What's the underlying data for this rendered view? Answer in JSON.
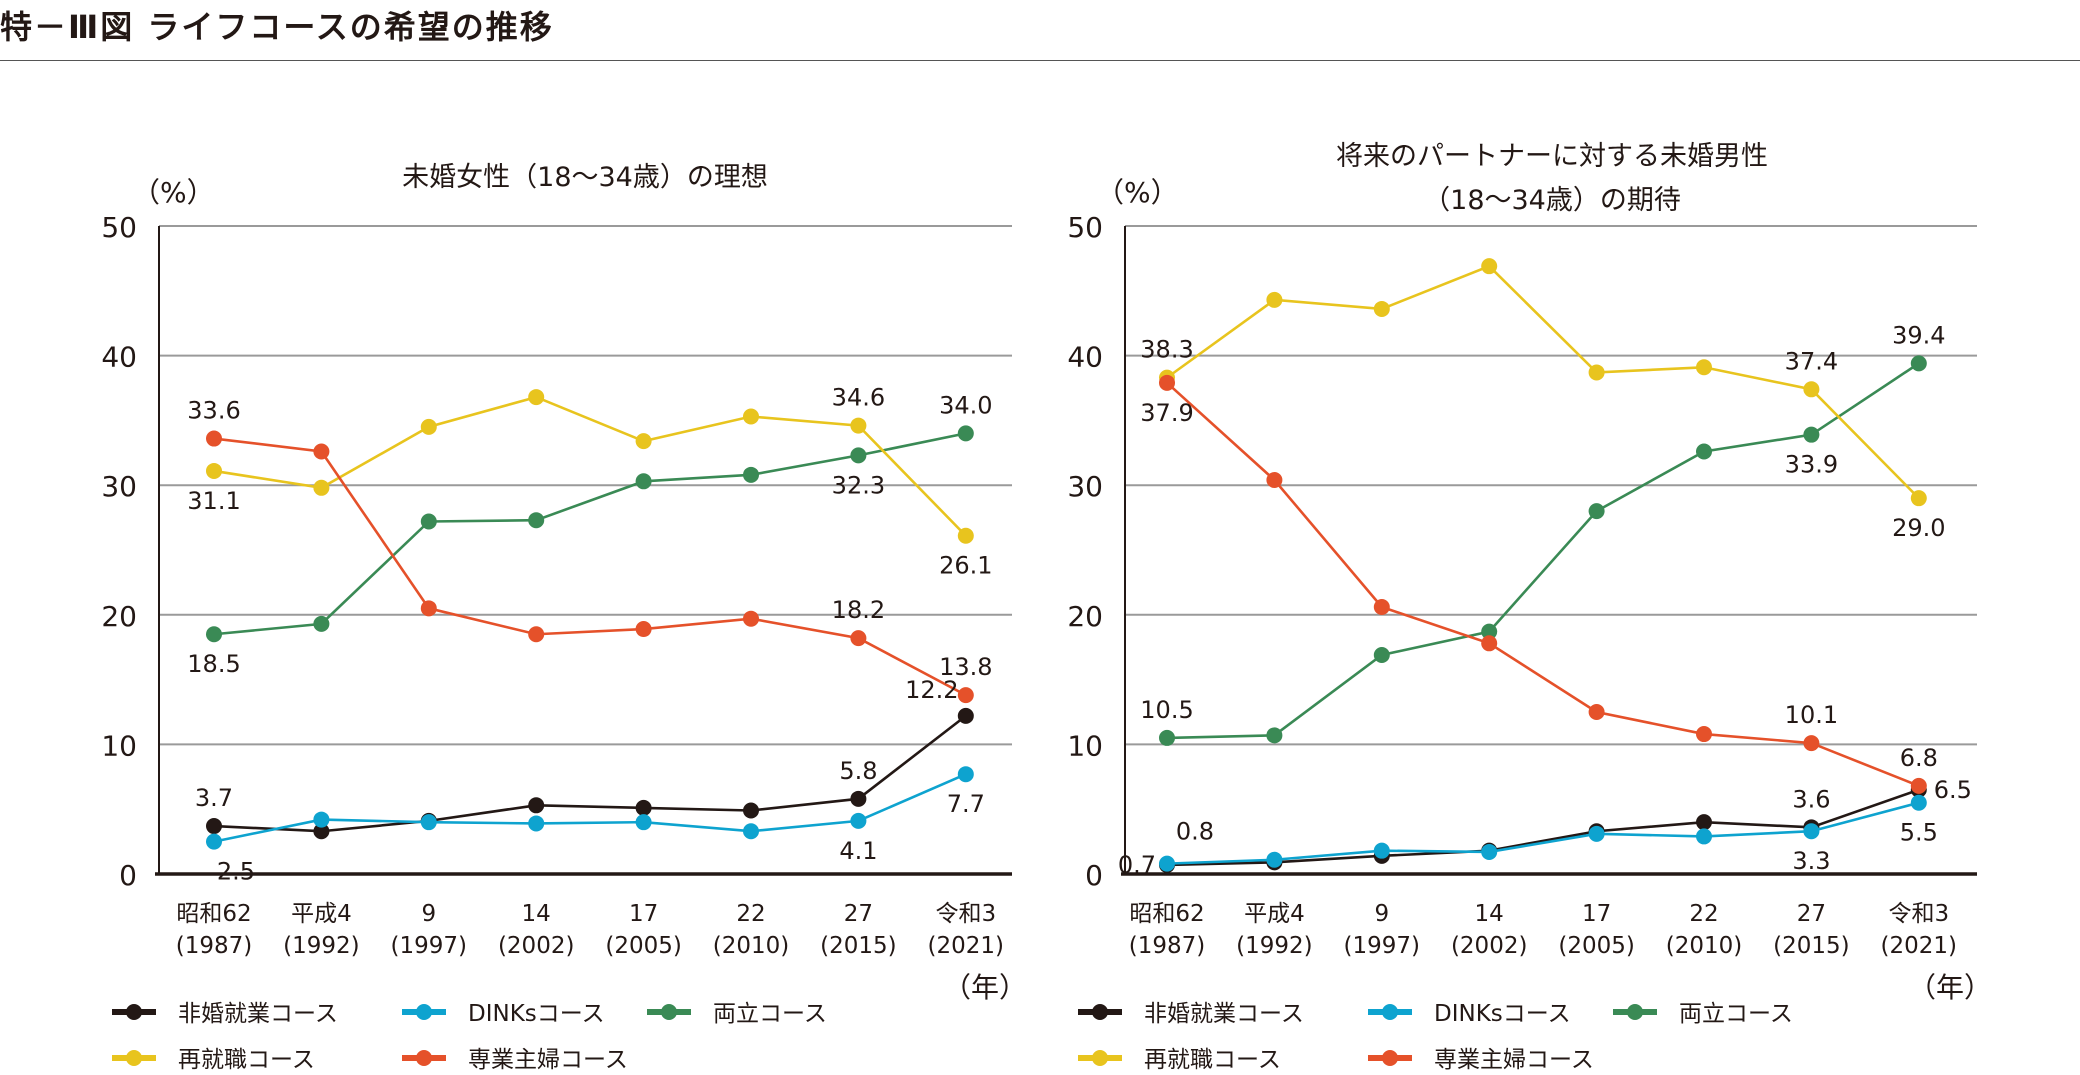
{
  "title": "特－Ⅲ図 ライフコースの希望の推移",
  "chart_data": [
    {
      "type": "line",
      "title": "未婚女性（18〜34歳）の理想",
      "title_lines": [
        "未婚女性（18〜34歳）の理想"
      ],
      "ylabel": "（%）",
      "xlabel": "（年）",
      "ylim": [
        0,
        50
      ],
      "yticks": [
        0,
        10,
        20,
        30,
        40,
        50
      ],
      "grid": true,
      "legend_position": "bottom",
      "categories": [
        [
          "昭和62",
          "(1987)"
        ],
        [
          "平成4",
          "(1992)"
        ],
        [
          "9",
          "(1997)"
        ],
        [
          "14",
          "(2002)"
        ],
        [
          "17",
          "(2005)"
        ],
        [
          "22",
          "(2010)"
        ],
        [
          "27",
          "(2015)"
        ],
        [
          "令和3",
          "(2021)"
        ]
      ],
      "series": [
        {
          "name": "非婚就業コース",
          "color": "#231815",
          "values": [
            3.7,
            3.3,
            4.1,
            5.3,
            5.1,
            4.9,
            5.8,
            12.2
          ],
          "labels": [
            {
              "i": 0,
              "text": "3.7",
              "pos": "above"
            },
            {
              "i": 6,
              "text": "5.8",
              "pos": "above"
            },
            {
              "i": 7,
              "text": "12.2",
              "pos": "upper-left"
            }
          ]
        },
        {
          "name": "DINKsコース",
          "color": "#0ea3cf",
          "values": [
            2.5,
            4.2,
            4.0,
            3.9,
            4.0,
            3.3,
            4.1,
            7.7
          ],
          "labels": [
            {
              "i": 0,
              "text": "2.5",
              "pos": "lower-right"
            },
            {
              "i": 6,
              "text": "4.1",
              "pos": "below"
            },
            {
              "i": 7,
              "text": "7.7",
              "pos": "below"
            }
          ]
        },
        {
          "name": "両立コース",
          "color": "#3a8a55",
          "values": [
            18.5,
            19.3,
            27.2,
            27.3,
            30.3,
            30.8,
            32.3,
            34.0
          ],
          "labels": [
            {
              "i": 0,
              "text": "18.5",
              "pos": "below"
            },
            {
              "i": 6,
              "text": "32.3",
              "pos": "below"
            },
            {
              "i": 7,
              "text": "34.0",
              "pos": "above"
            }
          ]
        },
        {
          "name": "再就職コース",
          "color": "#e8c41e",
          "values": [
            31.1,
            29.8,
            34.5,
            36.8,
            33.4,
            35.3,
            34.6,
            26.1
          ],
          "labels": [
            {
              "i": 0,
              "text": "31.1",
              "pos": "below"
            },
            {
              "i": 6,
              "text": "34.6",
              "pos": "above"
            },
            {
              "i": 7,
              "text": "26.1",
              "pos": "below"
            }
          ]
        },
        {
          "name": "専業主婦コース",
          "color": "#e5512a",
          "values": [
            33.6,
            32.6,
            20.5,
            18.5,
            18.9,
            19.7,
            18.2,
            13.8
          ],
          "labels": [
            {
              "i": 0,
              "text": "33.6",
              "pos": "above"
            },
            {
              "i": 6,
              "text": "18.2",
              "pos": "above"
            },
            {
              "i": 7,
              "text": "13.8",
              "pos": "above"
            }
          ]
        }
      ]
    },
    {
      "type": "line",
      "title": "将来のパートナーに対する未婚男性（18〜34歳）の期待",
      "title_lines": [
        "将来のパートナーに対する未婚男性",
        "（18〜34歳）の期待"
      ],
      "ylabel": "（%）",
      "xlabel": "（年）",
      "ylim": [
        0,
        50
      ],
      "yticks": [
        0,
        10,
        20,
        30,
        40,
        50
      ],
      "grid": true,
      "legend_position": "bottom",
      "categories": [
        [
          "昭和62",
          "(1987)"
        ],
        [
          "平成4",
          "(1992)"
        ],
        [
          "9",
          "(1997)"
        ],
        [
          "14",
          "(2002)"
        ],
        [
          "17",
          "(2005)"
        ],
        [
          "22",
          "(2010)"
        ],
        [
          "27",
          "(2015)"
        ],
        [
          "令和3",
          "(2021)"
        ]
      ],
      "series": [
        {
          "name": "非婚就業コース",
          "color": "#231815",
          "values": [
            0.7,
            0.9,
            1.4,
            1.8,
            3.3,
            4.0,
            3.6,
            6.5
          ],
          "labels": [
            {
              "i": 0,
              "text": "0.7",
              "pos": "left"
            },
            {
              "i": 6,
              "text": "3.6",
              "pos": "above"
            },
            {
              "i": 7,
              "text": "6.5",
              "pos": "right"
            }
          ]
        },
        {
          "name": "DINKsコース",
          "color": "#0ea3cf",
          "values": [
            0.8,
            1.1,
            1.8,
            1.7,
            3.1,
            2.9,
            3.3,
            5.5
          ],
          "labels": [
            {
              "i": 0,
              "text": "0.8",
              "pos": "upper-right"
            },
            {
              "i": 6,
              "text": "3.3",
              "pos": "below"
            },
            {
              "i": 7,
              "text": "5.5",
              "pos": "below"
            }
          ]
        },
        {
          "name": "両立コース",
          "color": "#3a8a55",
          "values": [
            10.5,
            10.7,
            16.9,
            18.7,
            28.0,
            32.6,
            33.9,
            39.4
          ],
          "labels": [
            {
              "i": 0,
              "text": "10.5",
              "pos": "above"
            },
            {
              "i": 6,
              "text": "33.9",
              "pos": "below"
            },
            {
              "i": 7,
              "text": "39.4",
              "pos": "above"
            }
          ]
        },
        {
          "name": "再就職コース",
          "color": "#e8c41e",
          "values": [
            38.3,
            44.3,
            43.6,
            46.9,
            38.7,
            39.1,
            37.4,
            29.0
          ],
          "labels": [
            {
              "i": 0,
              "text": "38.3",
              "pos": "above"
            },
            {
              "i": 6,
              "text": "37.4",
              "pos": "above"
            },
            {
              "i": 7,
              "text": "29.0",
              "pos": "below"
            }
          ]
        },
        {
          "name": "専業主婦コース",
          "color": "#e5512a",
          "values": [
            37.9,
            30.4,
            20.6,
            17.8,
            12.5,
            10.8,
            10.1,
            6.8
          ],
          "labels": [
            {
              "i": 0,
              "text": "37.9",
              "pos": "below"
            },
            {
              "i": 6,
              "text": "10.1",
              "pos": "above"
            },
            {
              "i": 7,
              "text": "6.8",
              "pos": "above"
            }
          ]
        }
      ]
    }
  ]
}
